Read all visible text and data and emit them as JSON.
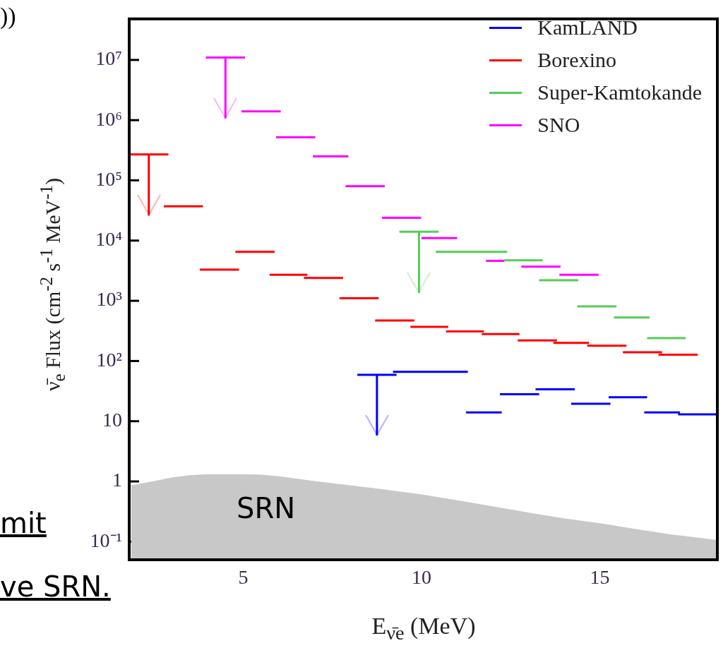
{
  "chart_data": {
    "type": "line",
    "xlabel": "E$_{ν̄e}$ (MeV)",
    "ylabel": "ν̄$_{e}$ Flux (cm$^{-2}$ s$^{-1}$ MeV$^{-1}$)",
    "log": "y",
    "marker": "none",
    "legend": "top right",
    "grid": false,
    "xlim": [
      1.8,
      18.3
    ],
    "xticks": [
      5,
      10,
      15
    ],
    "ylim": [
      0.05,
      48000000
    ],
    "yticks": [
      {
        "value": 0.1,
        "label": "10⁻¹"
      },
      1,
      10,
      {
        "value": 100,
        "label": "10²"
      },
      {
        "value": 1000,
        "label": "10³"
      },
      {
        "value": 10000,
        "label": "10⁴"
      },
      {
        "value": 100000,
        "label": "10⁵"
      },
      {
        "value": 1000000,
        "label": "10⁶"
      },
      {
        "value": 10000000,
        "label": "10⁷"
      }
    ],
    "series": [
      {
        "name": "KamLAND",
        "color": "#0000ff",
        "x": [
          8.2,
          8.75,
          9.3,
          9.25,
          9.2,
          11.3,
          11.28,
          11.25,
          12.25,
          12.22,
          12.2,
          13.3,
          13.25,
          13.2,
          14.3,
          14.25,
          14.2,
          15.3,
          15.27,
          15.25,
          16.33,
          16.29,
          16.25,
          17.25,
          17.22,
          17.2,
          18.3
        ],
        "values": [
          59,
          59,
          59,
          null,
          66,
          66,
          null,
          14,
          14,
          null,
          28,
          28,
          null,
          34,
          34,
          null,
          19.5,
          19.5,
          null,
          25,
          25,
          null,
          14,
          14,
          null,
          13,
          13
        ],
        "errors": [
          null,
          [
            5.8,
            59
          ],
          null,
          null,
          null,
          null,
          null,
          null,
          null,
          null,
          null,
          null,
          null,
          null,
          null,
          null,
          null,
          null,
          null,
          null,
          null,
          null,
          null,
          null,
          null,
          null,
          null
        ]
      },
      {
        "name": "Borexino",
        "color": "#ff0000",
        "x": [
          1.8,
          2.35,
          2.9,
          2.84,
          2.77,
          3.87,
          3.83,
          3.78,
          4.88,
          4.83,
          4.78,
          5.88,
          5.81,
          5.74,
          6.8,
          6.75,
          6.7,
          7.8,
          7.75,
          7.7,
          8.8,
          8.75,
          8.7,
          9.8,
          9.75,
          9.69,
          10.75,
          10.72,
          10.69,
          11.75,
          11.72,
          11.69,
          12.75,
          12.72,
          12.7,
          13.8,
          13.75,
          13.7,
          14.7,
          14.68,
          14.65,
          15.75,
          15.7,
          15.65,
          16.75,
          16.7,
          16.65,
          17.75
        ],
        "values": [
          270000,
          270000,
          270000,
          null,
          37000,
          37000,
          null,
          3300,
          3300,
          null,
          6500,
          6500,
          null,
          2700,
          2700,
          null,
          2400,
          2400,
          null,
          1100,
          1100,
          null,
          470,
          470,
          null,
          370,
          370,
          null,
          310,
          310,
          null,
          280,
          280,
          null,
          220,
          220,
          null,
          200,
          200,
          null,
          180,
          180,
          null,
          140,
          140,
          null,
          127,
          127
        ],
        "errors": [
          null,
          [
            26000,
            270000
          ],
          null,
          null,
          null,
          null,
          null,
          null,
          null,
          null,
          null,
          null,
          null,
          null,
          null,
          null,
          null,
          null,
          null,
          null,
          null,
          null,
          null,
          null,
          null,
          null,
          null,
          null,
          null,
          null,
          null,
          null,
          null,
          null,
          null,
          null,
          null,
          null,
          null,
          null,
          null,
          null,
          null,
          null,
          null,
          null,
          null,
          null
        ]
      },
      {
        "name": "Super-Kamtokande",
        "color": "#55cc55",
        "x": [
          9.38,
          9.93,
          10.48,
          10.44,
          10.4,
          12.4,
          12.36,
          12.32,
          13.4,
          13.35,
          13.3,
          14.4,
          14.38,
          14.37,
          15.47,
          15.43,
          15.4,
          16.4,
          16.36,
          16.33,
          17.41
        ],
        "values": [
          14000,
          14000,
          14000,
          null,
          6500,
          6500,
          null,
          4700,
          4700,
          null,
          2200,
          2200,
          null,
          810,
          810,
          null,
          530,
          530,
          null,
          240,
          240
        ],
        "errors": [
          null,
          [
            1350,
            14000
          ],
          null,
          null,
          null,
          null,
          null,
          null,
          null,
          null,
          null,
          null,
          null,
          null,
          null,
          null,
          null,
          null,
          null,
          null,
          null
        ]
      },
      {
        "name": "SNO",
        "color": "#ff00ff",
        "x": [
          3.95,
          4.5,
          5.05,
          5.0,
          4.95,
          6.05,
          5.98,
          5.92,
          7.02,
          6.98,
          6.95,
          7.95,
          7.91,
          7.87,
          8.97,
          8.93,
          8.89,
          9.99,
          9.995,
          10.0,
          11.0,
          11.4,
          11.81,
          12.33,
          12.56,
          12.8,
          13.9,
          13.88,
          13.87,
          14.97
        ],
        "values": [
          11000000,
          11000000,
          11000000,
          null,
          1400000,
          1400000,
          null,
          520000,
          520000,
          null,
          250000,
          250000,
          null,
          80000,
          80000,
          null,
          24000,
          24000,
          null,
          11000,
          11000,
          null,
          4600,
          4600,
          null,
          3700,
          3700,
          null,
          2700,
          2700
        ],
        "errors": [
          null,
          [
            1070000,
            11000000
          ],
          null,
          null,
          null,
          null,
          null,
          null,
          null,
          null,
          null,
          null,
          null,
          null,
          null,
          null,
          null,
          null,
          null,
          null,
          null,
          null,
          null,
          null,
          null,
          null,
          null,
          null,
          null,
          null
        ]
      },
      {
        "type": "area",
        "color": "#c8c8c8",
        "x": [
          1.85,
          2.5,
          3,
          3.5,
          4,
          5,
          5.5,
          6,
          7,
          8,
          9,
          10,
          11,
          12,
          13,
          14,
          15,
          16,
          17,
          18.3
        ],
        "values": [
          0.85,
          1.0,
          1.15,
          1.25,
          1.3,
          1.3,
          1.28,
          1.2,
          1.0,
          0.85,
          0.72,
          0.6,
          0.48,
          0.38,
          0.3,
          0.24,
          0.2,
          0.16,
          0.13,
          0.105
        ]
      }
    ],
    "annotations": [
      "SRN",
      "))",
      "mit",
      "ve SRN."
    ]
  }
}
